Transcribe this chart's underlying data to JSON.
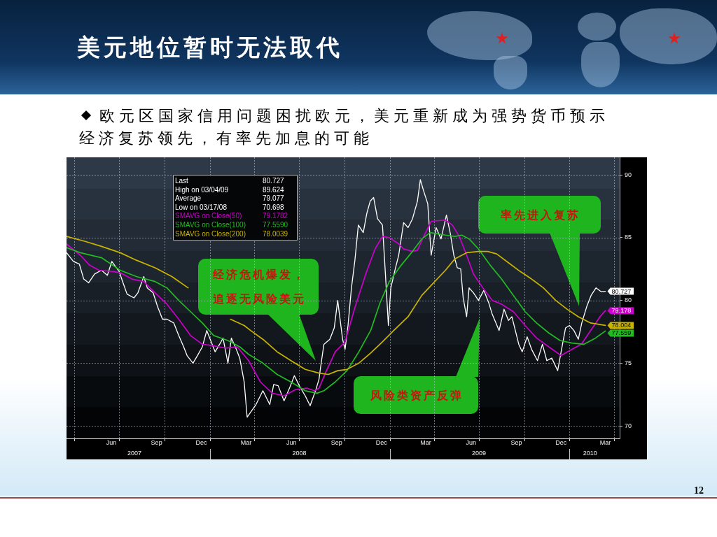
{
  "chart_data": {
    "type": "line",
    "title": "美元地位暂时无法取代",
    "subtitle": "欧元区国家信用问题困扰欧元，美元重新成为强势货币预示经济复苏领先，有率先加息的可能",
    "xlim": [
      "2007-03-16",
      "2010-04-13"
    ],
    "xticks": [
      {
        "value": "2007-04-01",
        "label": null
      },
      {
        "value": "2007-06-15",
        "label": "Jun"
      },
      {
        "value": "2007-07-01",
        "label": null
      },
      {
        "value": "2007-09-15",
        "label": "Sep"
      },
      {
        "value": "2007-10-01",
        "label": null
      },
      {
        "value": "2007-12-15",
        "label": "Dec"
      },
      {
        "value": "2008-01-01",
        "label": null
      },
      {
        "value": "2008-03-15",
        "label": "Mar"
      },
      {
        "value": "2008-04-01",
        "label": null
      },
      {
        "value": "2008-06-15",
        "label": "Jun"
      },
      {
        "value": "2008-07-01",
        "label": null
      },
      {
        "value": "2008-09-15",
        "label": "Sep"
      },
      {
        "value": "2008-10-01",
        "label": null
      },
      {
        "value": "2008-12-15",
        "label": "Dec"
      },
      {
        "value": "2009-01-01",
        "label": null
      },
      {
        "value": "2009-03-15",
        "label": "Mar"
      },
      {
        "value": "2009-04-01",
        "label": null
      },
      {
        "value": "2009-06-15",
        "label": "Jun"
      },
      {
        "value": "2009-07-01",
        "label": null
      },
      {
        "value": "2009-09-15",
        "label": "Sep"
      },
      {
        "value": "2009-10-01",
        "label": null
      },
      {
        "value": "2009-12-15",
        "label": "Dec"
      },
      {
        "value": "2010-01-01",
        "label": null
      },
      {
        "value": "2010-03-15",
        "label": "Mar"
      },
      {
        "value": "2010-04-01",
        "label": null
      }
    ],
    "x2lim": [
      "2007-03-16",
      "2010-04-13"
    ],
    "x2ticks": [
      {
        "value": "2007-08-01",
        "label": "2007"
      },
      {
        "value": "2008-01-01",
        "label": null
      },
      {
        "value": "2008-07-01",
        "label": "2008"
      },
      {
        "value": "2009-01-01",
        "label": null
      },
      {
        "value": "2009-07-01",
        "label": "2009"
      },
      {
        "value": "2010-01-01",
        "label": null
      },
      {
        "value": "2010-02-12",
        "label": "2010"
      }
    ],
    "ylim": [
      69.0,
      91.4
    ],
    "yticks": [
      70,
      75,
      80,
      85,
      90
    ],
    "grid": true,
    "legend": "top left",
    "series": [
      {
        "color": "#ffffff",
        "x": [
          "2007-03-16",
          "2007-03-30",
          "2007-04-11",
          "2007-04-20",
          "2007-04-30",
          "2007-05-12",
          "2007-05-26",
          "2007-06-07",
          "2007-06-16",
          "2007-07-01",
          "2007-07-08",
          "2007-07-17",
          "2007-07-31",
          "2007-08-08",
          "2007-08-20",
          "2007-08-27",
          "2007-09-08",
          "2007-09-17",
          "2007-09-27",
          "2007-10-06",
          "2007-10-20",
          "2007-10-30",
          "2007-11-09",
          "2007-11-16",
          "2007-11-28",
          "2007-12-07",
          "2007-12-17",
          "2007-12-26",
          "2008-01-02",
          "2008-01-12",
          "2008-01-24",
          "2008-01-28",
          "2008-02-07",
          "2008-02-14",
          "2008-02-23",
          "2008-03-02",
          "2008-03-11",
          "2008-03-17",
          "2008-04-04",
          "2008-04-18",
          "2008-05-02",
          "2008-05-10",
          "2008-05-19",
          "2008-05-31",
          "2008-06-12",
          "2008-06-21",
          "2008-07-01",
          "2008-07-13",
          "2008-07-23",
          "2008-08-03",
          "2008-08-10",
          "2008-08-13",
          "2008-08-20",
          "2008-09-01",
          "2008-09-10",
          "2008-09-17",
          "2008-09-27",
          "2008-10-02",
          "2008-10-08",
          "2008-10-15",
          "2008-10-22",
          "2008-10-29",
          "2008-11-08",
          "2008-11-15",
          "2008-11-22",
          "2008-11-29",
          "2008-12-07",
          "2008-12-17",
          "2008-12-23",
          "2008-12-29",
          "2009-01-03",
          "2009-01-12",
          "2009-01-19",
          "2009-01-29",
          "2009-02-07",
          "2009-02-16",
          "2009-02-26",
          "2009-03-04",
          "2009-03-10",
          "2009-03-19",
          "2009-03-26",
          "2009-04-05",
          "2009-04-15",
          "2009-04-26",
          "2009-05-04",
          "2009-05-11",
          "2009-05-18",
          "2009-05-25",
          "2009-05-30",
          "2009-06-06",
          "2009-06-11",
          "2009-06-20",
          "2009-06-30",
          "2009-07-11",
          "2009-07-21",
          "2009-07-28",
          "2009-08-11",
          "2009-08-21",
          "2009-08-30",
          "2009-09-06",
          "2009-09-13",
          "2009-09-20",
          "2009-09-27",
          "2009-10-07",
          "2009-10-16",
          "2009-10-28",
          "2009-11-07",
          "2009-11-16",
          "2009-11-26",
          "2009-12-08",
          "2009-12-15",
          "2009-12-24",
          "2010-01-01",
          "2010-01-10",
          "2010-01-19",
          "2010-01-26",
          "2010-02-05",
          "2010-02-14",
          "2010-02-24",
          "2010-03-06",
          "2010-03-15"
        ],
        "values": [
          83.8,
          83.1,
          82.9,
          81.7,
          81.4,
          82.1,
          82.4,
          82.0,
          83.1,
          82.3,
          81.5,
          80.5,
          80.2,
          80.6,
          81.9,
          81.0,
          80.6,
          79.5,
          78.5,
          78.5,
          78.2,
          77.2,
          76.3,
          75.6,
          75.0,
          75.6,
          76.3,
          77.6,
          76.9,
          75.9,
          76.7,
          77.0,
          75.0,
          77.0,
          76.2,
          75.4,
          73.5,
          70.698,
          71.7,
          72.8,
          71.7,
          73.3,
          73.2,
          72.0,
          73.1,
          74.0,
          73.2,
          72.4,
          71.6,
          72.8,
          73.7,
          74.6,
          76.5,
          76.9,
          77.8,
          80.0,
          76.9,
          76.1,
          78.0,
          81.0,
          83.2,
          86.0,
          85.4,
          86.9,
          87.9,
          88.2,
          86.5,
          86.0,
          82.1,
          78.0,
          81.0,
          82.5,
          83.6,
          86.2,
          85.8,
          86.5,
          87.9,
          89.624,
          88.8,
          87.7,
          83.6,
          85.8,
          84.9,
          86.8,
          85.3,
          83.6,
          82.6,
          82.5,
          80.2,
          78.7,
          81.0,
          80.6,
          80.0,
          80.8,
          79.8,
          78.9,
          77.6,
          79.3,
          78.4,
          78.7,
          77.6,
          76.5,
          75.9,
          77.1,
          76.1,
          75.2,
          76.5,
          75.2,
          75.4,
          74.4,
          75.9,
          77.8,
          78.0,
          77.6,
          76.9,
          78.2,
          79.5,
          80.4,
          81.0,
          80.7,
          80.727
        ],
        "value_labels": [
          null,
          null,
          null,
          null,
          null,
          null,
          null,
          null,
          null,
          null,
          null,
          null,
          null,
          null,
          null,
          null,
          null,
          null,
          null,
          null,
          null,
          null,
          null,
          null,
          null,
          null,
          null,
          null,
          null,
          null,
          null,
          null,
          null,
          null,
          null,
          null,
          null,
          null,
          null,
          null,
          null,
          null,
          null,
          null,
          null,
          null,
          null,
          null,
          null,
          null,
          null,
          null,
          null,
          null,
          null,
          null,
          null,
          null,
          null,
          null,
          null,
          null,
          null,
          null,
          null,
          null,
          null,
          null,
          null,
          null,
          null,
          null,
          null,
          null,
          null,
          null,
          null,
          null,
          null,
          null,
          null,
          null,
          null,
          null,
          null,
          null,
          null,
          null,
          null,
          null,
          null,
          null,
          null,
          null,
          null,
          null,
          null,
          null,
          null,
          null,
          null,
          null,
          null,
          null,
          null,
          null,
          null,
          null,
          null,
          null,
          null,
          null,
          null,
          null,
          null,
          null,
          null,
          null,
          null,
          null,
          "80.727"
        ]
      },
      {
        "name": "SMAVG on Close(50)",
        "color": "#cc00cc",
        "x": [
          "2007-03-16",
          "2007-04-13",
          "2007-05-02",
          "2007-05-21",
          "2007-06-19",
          "2007-07-03",
          "2007-07-27",
          "2007-08-20",
          "2007-09-12",
          "2007-10-06",
          "2007-10-30",
          "2007-11-23",
          "2007-12-17",
          "2008-01-05",
          "2008-02-02",
          "2008-02-26",
          "2008-03-20",
          "2008-04-13",
          "2008-05-07",
          "2008-05-31",
          "2008-06-24",
          "2008-07-17",
          "2008-08-01",
          "2008-08-10",
          "2008-08-24",
          "2008-09-12",
          "2008-10-02",
          "2008-10-21",
          "2008-11-13",
          "2008-12-02",
          "2008-12-17",
          "2008-12-31",
          "2009-01-19",
          "2009-01-29",
          "2009-02-16",
          "2009-02-26",
          "2009-03-12",
          "2009-03-26",
          "2009-04-24",
          "2009-05-08",
          "2009-05-22",
          "2009-06-06",
          "2009-06-20",
          "2009-07-09",
          "2009-07-28",
          "2009-08-16",
          "2009-09-09",
          "2009-10-03",
          "2009-10-26",
          "2009-11-20",
          "2009-12-15",
          "2010-01-06",
          "2010-01-25",
          "2010-02-13",
          "2010-03-04",
          "2010-03-15"
        ],
        "values": [
          84.5,
          83.6,
          82.8,
          82.4,
          82.3,
          82.2,
          81.7,
          81.5,
          80.6,
          79.7,
          78.5,
          77.2,
          76.5,
          76.4,
          76.2,
          76.3,
          75.2,
          73.5,
          72.6,
          72.4,
          72.9,
          73.0,
          72.8,
          73.0,
          74.3,
          75.9,
          76.7,
          79.3,
          82.1,
          84.1,
          85.1,
          85.0,
          84.5,
          84.1,
          83.9,
          84.0,
          85.2,
          86.3,
          86.4,
          86.0,
          85.1,
          83.6,
          82.1,
          81.0,
          80.0,
          79.7,
          79.1,
          78.0,
          77.0,
          76.3,
          75.6,
          76.1,
          76.5,
          77.6,
          78.7,
          79.178
        ],
        "value_labels": [
          null,
          null,
          null,
          null,
          null,
          null,
          null,
          null,
          null,
          null,
          null,
          null,
          null,
          null,
          null,
          null,
          null,
          null,
          null,
          null,
          null,
          null,
          null,
          null,
          null,
          null,
          null,
          null,
          null,
          null,
          null,
          null,
          null,
          null,
          null,
          null,
          null,
          null,
          null,
          null,
          null,
          null,
          null,
          null,
          null,
          null,
          null,
          null,
          null,
          null,
          null,
          null,
          null,
          null,
          null,
          "79.178"
        ]
      },
      {
        "name": "SMAVG on Close(100)",
        "color": "#22bb22",
        "x": [
          "2007-03-16",
          "2007-04-13",
          "2007-05-26",
          "2007-07-03",
          "2007-08-05",
          "2007-09-12",
          "2007-10-06",
          "2007-10-30",
          "2007-11-23",
          "2007-12-17",
          "2008-01-09",
          "2008-02-07",
          "2008-03-02",
          "2008-03-20",
          "2008-04-18",
          "2008-05-17",
          "2008-06-14",
          "2008-07-13",
          "2008-08-06",
          "2008-08-20",
          "2008-09-12",
          "2008-10-06",
          "2008-10-30",
          "2008-11-23",
          "2008-12-12",
          "2008-12-31",
          "2009-01-24",
          "2009-02-16",
          "2009-03-07",
          "2009-03-24",
          "2009-04-24",
          "2009-05-13",
          "2009-05-27",
          "2009-06-11",
          "2009-06-30",
          "2009-07-24",
          "2009-08-16",
          "2009-09-09",
          "2009-10-03",
          "2009-10-26",
          "2009-11-20",
          "2009-12-13",
          "2010-01-06",
          "2010-01-30",
          "2010-02-23",
          "2010-03-15"
        ],
        "values": [
          84.2,
          83.8,
          83.4,
          82.4,
          81.9,
          81.5,
          81.0,
          80.0,
          79.1,
          78.2,
          77.2,
          76.8,
          76.3,
          75.7,
          75.0,
          74.1,
          73.5,
          72.8,
          72.6,
          72.8,
          73.5,
          74.4,
          75.9,
          77.6,
          79.8,
          81.5,
          82.8,
          83.9,
          84.9,
          85.4,
          85.2,
          85.1,
          85.2,
          84.9,
          84.1,
          82.8,
          81.7,
          80.4,
          79.1,
          78.2,
          77.4,
          76.8,
          76.6,
          76.5,
          77.0,
          77.559
        ],
        "value_labels": [
          null,
          null,
          null,
          null,
          null,
          null,
          null,
          null,
          null,
          null,
          null,
          null,
          null,
          null,
          null,
          null,
          null,
          null,
          null,
          null,
          null,
          null,
          null,
          null,
          null,
          null,
          null,
          null,
          null,
          null,
          null,
          null,
          null,
          null,
          null,
          null,
          null,
          null,
          null,
          null,
          null,
          null,
          null,
          null,
          null,
          "77.559"
        ]
      },
      {
        "name": "SMAVG on Close(200)",
        "color": "#c8b400",
        "x": [
          "2007-03-16",
          "2007-04-23",
          "2007-05-26",
          "2007-07-03",
          "2007-08-05",
          "2007-09-12",
          "2007-10-16",
          "2007-11-18",
          "2007-12-17",
          "2008-01-14",
          "2008-02-12",
          "2008-03-11",
          "2008-03-24",
          "2008-04-18",
          "2008-05-17",
          "2008-06-14",
          "2008-07-13",
          "2008-08-10",
          "2008-08-29",
          "2008-09-17",
          "2008-10-06",
          "2008-10-30",
          "2008-11-23",
          "2008-12-17",
          "2009-01-09",
          "2009-02-07",
          "2009-03-07",
          "2009-03-26",
          "2009-04-24",
          "2009-05-13",
          "2009-06-06",
          "2009-06-30",
          "2009-07-19",
          "2009-08-06",
          "2009-08-30",
          "2009-09-23",
          "2009-10-16",
          "2009-11-09",
          "2009-12-04",
          "2009-12-27",
          "2010-01-19",
          "2010-02-13",
          "2010-03-15"
        ],
        "values": [
          85.1,
          84.7,
          84.3,
          83.8,
          83.2,
          82.6,
          81.9,
          81.0,
          null,
          null,
          78.5,
          78.0,
          77.6,
          76.9,
          75.9,
          75.2,
          74.5,
          74.2,
          74.1,
          74.4,
          74.5,
          75.0,
          75.8,
          76.7,
          77.6,
          78.7,
          80.4,
          81.2,
          82.4,
          83.3,
          83.8,
          83.9,
          83.9,
          83.7,
          83.0,
          82.3,
          81.7,
          81.0,
          80.0,
          79.3,
          78.7,
          78.2,
          78.004
        ],
        "value_labels": [
          null,
          null,
          null,
          null,
          null,
          null,
          null,
          null,
          null,
          null,
          null,
          null,
          null,
          null,
          null,
          null,
          null,
          null,
          null,
          null,
          null,
          null,
          null,
          null,
          null,
          null,
          null,
          null,
          null,
          null,
          null,
          null,
          null,
          null,
          null,
          null,
          null,
          null,
          null,
          null,
          null,
          null,
          "78.004"
        ]
      }
    ],
    "annotations": [
      "Last",
      "80.727",
      "High on 03/04/09",
      "89.624",
      "Average",
      "79.077",
      "Low on 03/17/08",
      "70.698",
      "79.1782",
      "77.5590",
      "78.0039",
      "经济危机爆发，追逐无风险美元",
      "风险类资产反弹",
      "率先进入复苏",
      "12"
    ]
  }
}
